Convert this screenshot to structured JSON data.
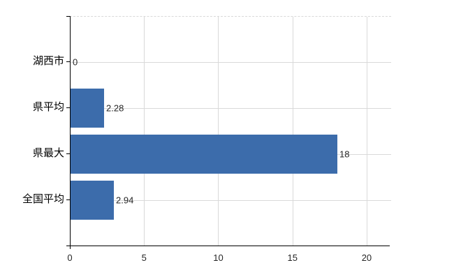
{
  "chart_data": {
    "type": "bar",
    "orientation": "horizontal",
    "title": "",
    "xlabel": "",
    "ylabel": "",
    "categories": [
      "湖西市",
      "県平均",
      "県最大",
      "全国平均"
    ],
    "values": [
      0,
      2.28,
      18,
      2.94
    ],
    "value_labels": [
      "0",
      "2.28",
      "18",
      "2.94"
    ],
    "x_ticks": [
      0,
      5,
      10,
      15,
      20
    ],
    "xlim": [
      0,
      21.65
    ],
    "grid": true,
    "grid_style": "vertical and horizontal light gray lines, dashed top border",
    "legend_position": "none",
    "colors": {
      "bar": "#3c6cab",
      "gridline": "#d9d9d9",
      "axis": "#000000",
      "text": "#262626",
      "category_text": "#000000",
      "background": "#ffffff"
    }
  }
}
